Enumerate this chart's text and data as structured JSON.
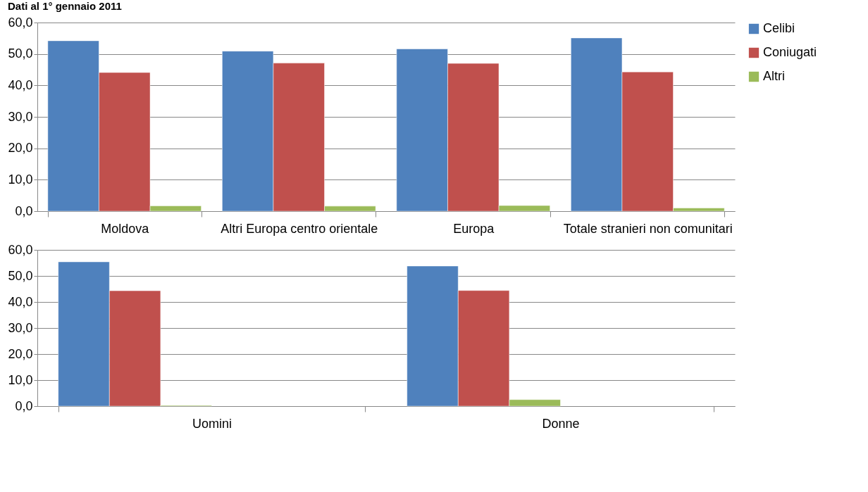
{
  "chart_data": [
    {
      "type": "bar",
      "title": "Dati al 1° gennaio 2011",
      "categories": [
        "Moldova",
        "Altri Europa centro orientale",
        "Europa",
        "Totale stranieri non comunitari"
      ],
      "series": [
        {
          "name": "Celibi",
          "color": "#4f81bd",
          "values": [
            54.2,
            50.9,
            51.6,
            55.1
          ]
        },
        {
          "name": "Coniugati",
          "color": "#c0504d",
          "values": [
            44.1,
            47.1,
            47.0,
            44.3
          ]
        },
        {
          "name": "Altri",
          "color": "#9bbb59",
          "values": [
            1.7,
            1.6,
            1.8,
            1.0
          ]
        }
      ],
      "ylim": [
        0,
        60
      ],
      "yticks": [
        {
          "value": 0,
          "label": "0,0"
        },
        {
          "value": 10,
          "label": "10,0"
        },
        {
          "value": 20,
          "label": "20,0"
        },
        {
          "value": 30,
          "label": "30,0"
        },
        {
          "value": 40,
          "label": "40,0"
        },
        {
          "value": 50,
          "label": "50,0"
        },
        {
          "value": 60,
          "label": "60,0"
        }
      ],
      "grid": "y",
      "legend": "right"
    },
    {
      "type": "bar",
      "categories": [
        "Uomini",
        "Donne"
      ],
      "series": [
        {
          "name": "Celibi",
          "color": "#4f81bd",
          "values": [
            55.4,
            53.8
          ]
        },
        {
          "name": "Coniugati",
          "color": "#c0504d",
          "values": [
            44.3,
            44.4
          ]
        },
        {
          "name": "Altri",
          "color": "#9bbb59",
          "values": [
            0.3,
            2.5
          ]
        }
      ],
      "ylim": [
        0,
        60
      ],
      "yticks": [
        {
          "value": 0,
          "label": "0,0"
        },
        {
          "value": 10,
          "label": "10,0"
        },
        {
          "value": 20,
          "label": "20,0"
        },
        {
          "value": 30,
          "label": "30,0"
        },
        {
          "value": 40,
          "label": "40,0"
        },
        {
          "value": 50,
          "label": "50,0"
        },
        {
          "value": 60,
          "label": "60,0"
        }
      ],
      "grid": "y",
      "legend": "right"
    }
  ]
}
